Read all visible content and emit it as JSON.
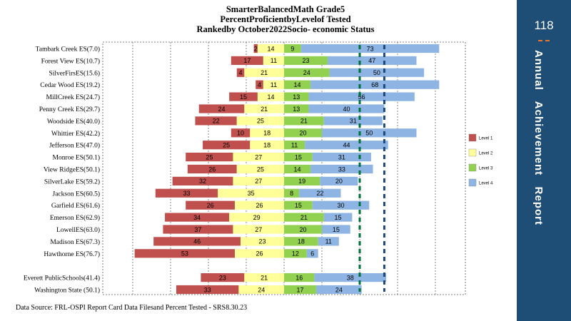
{
  "title": {
    "line1": "SmarterBalancedMath Grade5",
    "line2": "PercentProficientbyLevelof Tested",
    "line3": "Rankedby October2022Socio- economic Status"
  },
  "source": "Data Source: FRL-OSPI Report Card Data Filesand Percent  Tested - SRS8.30.23",
  "sidebar": {
    "page_number": "118",
    "title": "Annual   Achievement   Report",
    "background": "#1e4d76",
    "accent": "#e8782a"
  },
  "chart_data": {
    "type": "bar",
    "orientation": "horizontal",
    "stacking": "diverging",
    "categories": [
      "Tambark Creek ES(7.0)",
      "Forest View ES(10.7)",
      "SilverFirsES(15.6)",
      "Cedar Wood ES(19.2)",
      "MillCreek ES(24.7)",
      "Penny Creek ES(29.7)",
      "Woodside ES(40.0)",
      "Whittier ES(42.2)",
      "Jefferson   ES(47.0)",
      "Monroe  ES(50.1)",
      "View RidgeES(50.1)",
      "SilverLake ES(59.2)",
      "Jackson ES(60.5)",
      "Garfield  ES(61.6)",
      "Emerson ES(62.9)",
      "LowellES(63.0)",
      "Madison ES(67.3)",
      "Hawthorne  ES(76.7)",
      "",
      "Everett  PublicSchools(41.4)",
      "Washington State  (50.1)"
    ],
    "series": [
      {
        "name": "Level 1",
        "color": "#c0504d",
        "values": [
          2,
          17,
          4,
          4,
          15,
          24,
          22,
          10,
          25,
          25,
          26,
          32,
          33,
          26,
          34,
          37,
          46,
          53,
          null,
          23,
          33
        ]
      },
      {
        "name": "Level 2",
        "color": "#ffff99",
        "values": [
          14,
          11,
          21,
          11,
          14,
          21,
          25,
          18,
          18,
          27,
          25,
          27,
          35,
          26,
          29,
          27,
          23,
          26,
          null,
          21,
          24
        ]
      },
      {
        "name": "Level 3",
        "color": "#92d050",
        "values": [
          9,
          23,
          24,
          14,
          13,
          13,
          21,
          20,
          11,
          15,
          14,
          19,
          8,
          15,
          21,
          20,
          18,
          12,
          null,
          16,
          17
        ]
      },
      {
        "name": "Level 4",
        "color": "#8eb4e3",
        "values": [
          73,
          47,
          50,
          68,
          56,
          40,
          31,
          50,
          44,
          31,
          33,
          20,
          22,
          30,
          15,
          15,
          11,
          6,
          null,
          38,
          24
        ]
      }
    ],
    "reference_lines": [
      {
        "value": 40,
        "color": "#00703c"
      },
      {
        "value": 53,
        "color": "#1f497d"
      }
    ],
    "legend_position": "right",
    "grid": "vertical dashed"
  }
}
